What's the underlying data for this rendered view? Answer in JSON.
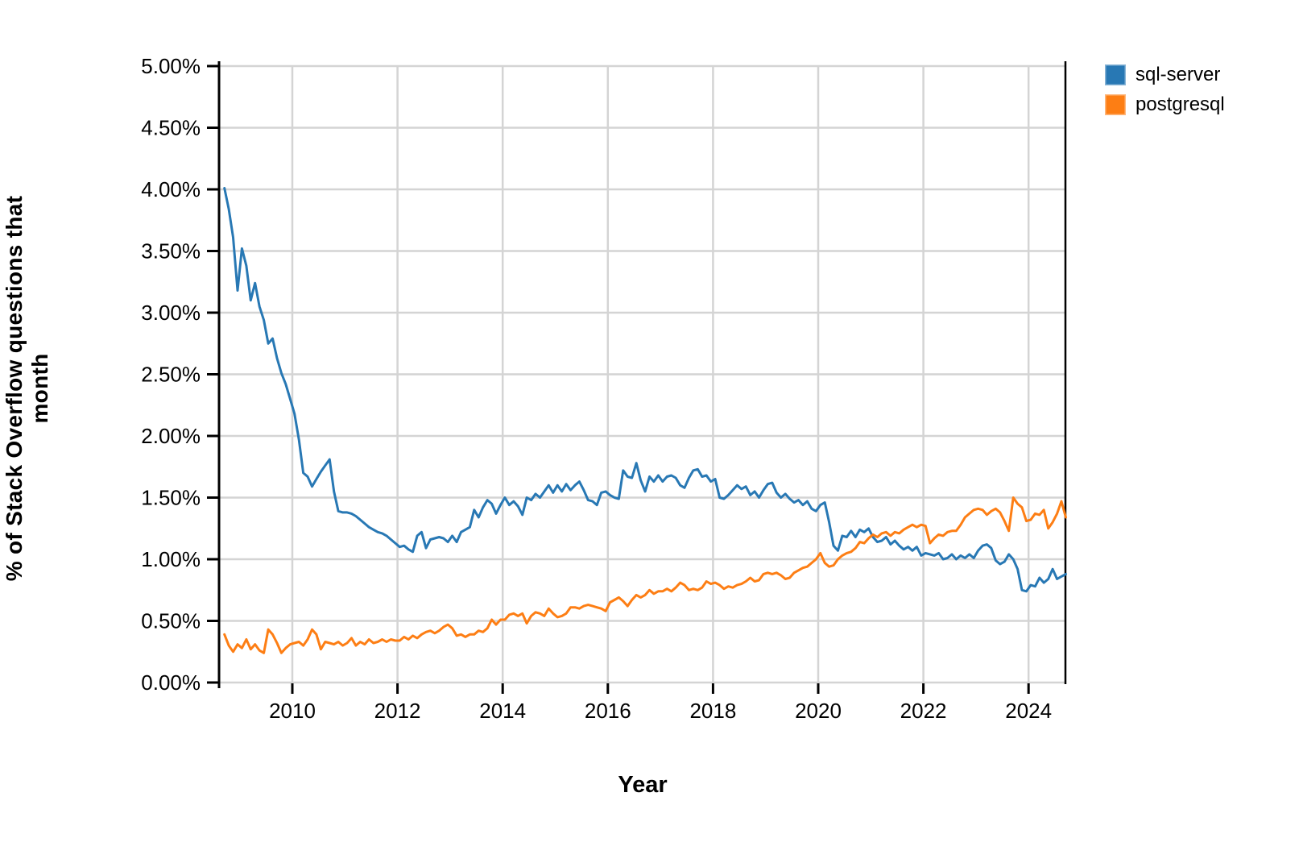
{
  "figure": {
    "background": "#ffffff",
    "axis_color": "#000000",
    "gridline_color": "#d4d4d4"
  },
  "axes": {
    "y_title": "% of Stack Overflow questions that month",
    "x_title": "Year",
    "y_tick_labels": [
      "5.00%",
      "4.50%",
      "4.00%",
      "3.50%",
      "3.00%",
      "2.50%",
      "2.00%",
      "1.50%",
      "1.00%",
      "0.50%",
      "0.00%"
    ],
    "y_tick_values": [
      5.0,
      4.5,
      4.0,
      3.5,
      3.0,
      2.5,
      2.0,
      1.5,
      1.0,
      0.5,
      0.0
    ],
    "x_tick_labels": [
      "2010",
      "2012",
      "2014",
      "2016",
      "2018",
      "2020",
      "2022",
      "2024"
    ],
    "x_tick_values": [
      2010,
      2012,
      2014,
      2016,
      2018,
      2020,
      2022,
      2024
    ]
  },
  "legend": {
    "items": [
      {
        "label": "sql-server",
        "color": "#2878b4"
      },
      {
        "label": "postgresql",
        "color": "#fd7e14"
      }
    ]
  },
  "chart_data": {
    "type": "line",
    "title": "",
    "xlabel": "Year",
    "ylabel": "% of Stack Overflow questions that month",
    "x_unit": "monthly",
    "x_start": "2008-09",
    "x_end": "2024-09",
    "xlim": [
      2008.62,
      2024.73
    ],
    "ylim": [
      0.0,
      5.0
    ],
    "grid": true,
    "legend_position": "top-right-outside",
    "series": [
      {
        "name": "sql-server",
        "color": "#2878b4",
        "values": [
          4.01,
          3.84,
          3.61,
          3.18,
          3.52,
          3.38,
          3.1,
          3.24,
          3.05,
          2.94,
          2.75,
          2.79,
          2.63,
          2.51,
          2.42,
          2.3,
          2.18,
          1.97,
          1.7,
          1.67,
          1.59,
          1.65,
          1.71,
          1.76,
          1.81,
          1.55,
          1.39,
          1.38,
          1.38,
          1.37,
          1.35,
          1.32,
          1.29,
          1.26,
          1.24,
          1.22,
          1.21,
          1.19,
          1.16,
          1.13,
          1.1,
          1.11,
          1.08,
          1.06,
          1.19,
          1.22,
          1.09,
          1.16,
          1.17,
          1.18,
          1.17,
          1.14,
          1.19,
          1.14,
          1.22,
          1.24,
          1.26,
          1.4,
          1.34,
          1.42,
          1.48,
          1.45,
          1.37,
          1.44,
          1.5,
          1.44,
          1.47,
          1.43,
          1.36,
          1.5,
          1.48,
          1.53,
          1.5,
          1.55,
          1.6,
          1.54,
          1.6,
          1.55,
          1.61,
          1.56,
          1.6,
          1.63,
          1.56,
          1.48,
          1.47,
          1.44,
          1.54,
          1.55,
          1.52,
          1.5,
          1.49,
          1.72,
          1.67,
          1.66,
          1.78,
          1.64,
          1.55,
          1.67,
          1.63,
          1.68,
          1.63,
          1.67,
          1.68,
          1.66,
          1.6,
          1.58,
          1.66,
          1.72,
          1.73,
          1.67,
          1.68,
          1.63,
          1.65,
          1.5,
          1.49,
          1.52,
          1.56,
          1.6,
          1.57,
          1.59,
          1.52,
          1.55,
          1.5,
          1.56,
          1.61,
          1.62,
          1.54,
          1.5,
          1.53,
          1.49,
          1.46,
          1.48,
          1.44,
          1.47,
          1.41,
          1.39,
          1.44,
          1.46,
          1.3,
          1.11,
          1.07,
          1.19,
          1.18,
          1.23,
          1.18,
          1.24,
          1.22,
          1.25,
          1.18,
          1.14,
          1.15,
          1.18,
          1.12,
          1.15,
          1.11,
          1.08,
          1.1,
          1.07,
          1.1,
          1.03,
          1.05,
          1.04,
          1.03,
          1.05,
          1.0,
          1.01,
          1.04,
          1.0,
          1.03,
          1.01,
          1.04,
          1.01,
          1.07,
          1.11,
          1.12,
          1.09,
          0.99,
          0.96,
          0.98,
          1.04,
          1.0,
          0.92,
          0.75,
          0.74,
          0.79,
          0.78,
          0.85,
          0.81,
          0.84,
          0.92,
          0.84,
          0.86,
          0.88
        ]
      },
      {
        "name": "postgresql",
        "color": "#fd7e14",
        "values": [
          0.39,
          0.3,
          0.25,
          0.31,
          0.28,
          0.35,
          0.27,
          0.31,
          0.26,
          0.24,
          0.43,
          0.39,
          0.32,
          0.24,
          0.28,
          0.31,
          0.32,
          0.33,
          0.3,
          0.35,
          0.43,
          0.39,
          0.27,
          0.33,
          0.32,
          0.31,
          0.33,
          0.3,
          0.32,
          0.36,
          0.3,
          0.33,
          0.31,
          0.35,
          0.32,
          0.33,
          0.35,
          0.33,
          0.35,
          0.34,
          0.34,
          0.37,
          0.35,
          0.38,
          0.36,
          0.39,
          0.41,
          0.42,
          0.4,
          0.42,
          0.45,
          0.47,
          0.44,
          0.38,
          0.39,
          0.37,
          0.39,
          0.39,
          0.42,
          0.41,
          0.44,
          0.51,
          0.47,
          0.51,
          0.51,
          0.55,
          0.56,
          0.54,
          0.56,
          0.48,
          0.54,
          0.57,
          0.56,
          0.54,
          0.6,
          0.56,
          0.53,
          0.54,
          0.56,
          0.61,
          0.61,
          0.6,
          0.62,
          0.63,
          0.62,
          0.61,
          0.6,
          0.58,
          0.65,
          0.67,
          0.69,
          0.66,
          0.62,
          0.67,
          0.71,
          0.69,
          0.71,
          0.75,
          0.72,
          0.74,
          0.74,
          0.76,
          0.74,
          0.77,
          0.81,
          0.79,
          0.75,
          0.76,
          0.75,
          0.77,
          0.82,
          0.8,
          0.81,
          0.79,
          0.76,
          0.78,
          0.77,
          0.79,
          0.8,
          0.82,
          0.85,
          0.82,
          0.83,
          0.88,
          0.89,
          0.88,
          0.89,
          0.87,
          0.84,
          0.85,
          0.89,
          0.91,
          0.93,
          0.94,
          0.97,
          1.0,
          1.05,
          0.97,
          0.94,
          0.95,
          1.0,
          1.03,
          1.05,
          1.06,
          1.09,
          1.14,
          1.13,
          1.17,
          1.2,
          1.18,
          1.21,
          1.22,
          1.19,
          1.22,
          1.21,
          1.24,
          1.26,
          1.28,
          1.26,
          1.28,
          1.27,
          1.13,
          1.17,
          1.2,
          1.19,
          1.22,
          1.23,
          1.23,
          1.28,
          1.34,
          1.37,
          1.4,
          1.41,
          1.4,
          1.36,
          1.39,
          1.41,
          1.38,
          1.31,
          1.23,
          1.5,
          1.45,
          1.42,
          1.31,
          1.32,
          1.37,
          1.36,
          1.4,
          1.25,
          1.3,
          1.37,
          1.47,
          1.34
        ]
      }
    ]
  }
}
